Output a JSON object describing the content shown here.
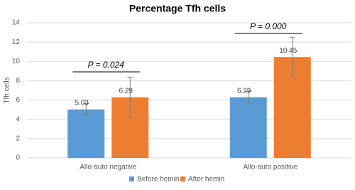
{
  "chart_data": {
    "type": "bar",
    "title": "Percentage Tfh cells",
    "y_label": "Tfh cells",
    "categories": [
      "Allo-auto negative",
      "Allo-auto positive"
    ],
    "series": [
      {
        "name": "Before hemin",
        "color": "#5b9bd5",
        "values": [
          5.03,
          6.29
        ],
        "errors": [
          0.6,
          0.6
        ]
      },
      {
        "name": "After hemin",
        "color": "#ed7d31",
        "values": [
          6.29,
          10.45
        ],
        "errors": [
          2.05,
          2.05
        ]
      }
    ],
    "annotations": [
      "P = 0.024",
      "P = 0.000"
    ],
    "ylim": [
      0,
      14
    ],
    "yticks": [
      0,
      2,
      4,
      6,
      8,
      10,
      12,
      14
    ],
    "grid": true,
    "legend": "bottom"
  }
}
